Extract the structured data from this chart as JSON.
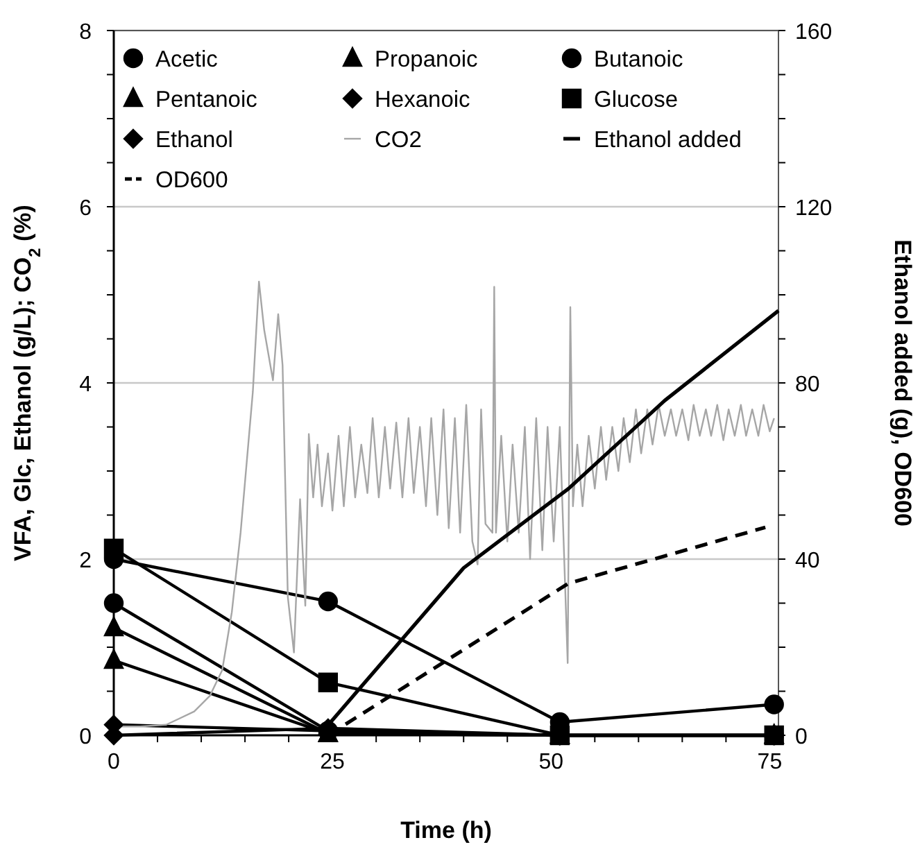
{
  "chart_data": {
    "type": "line",
    "xlabel": "Time (h)",
    "ylabel": "VFA, Glc, Ethanol (g/L);   CO$_{2}$ (%)",
    "y2label": "Ethanol added (g), OD600",
    "xlim": [
      0,
      76
    ],
    "xticks": [
      0,
      {
        "value": 5,
        "label": null
      },
      {
        "value": 10,
        "label": null
      },
      {
        "value": 15,
        "label": null
      },
      {
        "value": 20,
        "label": null
      },
      25,
      {
        "value": 30,
        "label": null
      },
      {
        "value": 35,
        "label": null
      },
      {
        "value": 40,
        "label": null
      },
      {
        "value": 45,
        "label": null
      },
      50,
      {
        "value": 55,
        "label": null
      },
      {
        "value": 60,
        "label": null
      },
      {
        "value": 65,
        "label": null
      },
      {
        "value": 70,
        "label": null
      },
      75
    ],
    "ylim": [
      0,
      8
    ],
    "yticks": [
      0,
      {
        "value": 0.5,
        "label": null
      },
      {
        "value": 1,
        "label": null
      },
      {
        "value": 1.5,
        "label": null
      },
      2,
      {
        "value": 2.5,
        "label": null
      },
      {
        "value": 3,
        "label": null
      },
      {
        "value": 3.5,
        "label": null
      },
      4,
      {
        "value": 4.5,
        "label": null
      },
      {
        "value": 5,
        "label": null
      },
      {
        "value": 5.5,
        "label": null
      },
      6,
      {
        "value": 6.5,
        "label": null
      },
      {
        "value": 7,
        "label": null
      },
      {
        "value": 7.5,
        "label": null
      },
      8
    ],
    "y2lim": [
      0,
      160
    ],
    "y2ticks": [
      0,
      {
        "value": 10,
        "label": null
      },
      {
        "value": 20,
        "label": null
      },
      {
        "value": 30,
        "label": null
      },
      40,
      {
        "value": 50,
        "label": null
      },
      {
        "value": 60,
        "label": null
      },
      {
        "value": 70,
        "label": null
      },
      80,
      {
        "value": 90,
        "label": null
      },
      {
        "value": 100,
        "label": null
      },
      {
        "value": 110,
        "label": null
      },
      120,
      {
        "value": 130,
        "label": null
      },
      {
        "value": 140,
        "label": null
      },
      {
        "value": 150,
        "label": null
      },
      160
    ],
    "grid": "y",
    "legend": "top",
    "series": [
      {
        "name": "Acetic",
        "color": "#000000",
        "marker": "circle",
        "line_style": "solid",
        "x": [
          0,
          24.5,
          51,
          75.5
        ],
        "values": [
          2.0,
          1.52,
          0.15,
          0.35
        ]
      },
      {
        "name": "Propanoic",
        "color": "#000000",
        "marker": "triangle",
        "line_style": "solid",
        "x": [
          0,
          24.5,
          51,
          75.5
        ],
        "values": [
          1.22,
          0.02,
          0,
          0
        ]
      },
      {
        "name": "Butanoic",
        "color": "#000000",
        "marker": "circle",
        "line_style": "solid",
        "x": [
          0,
          24.5,
          51,
          75.5
        ],
        "values": [
          1.5,
          0.05,
          0,
          0
        ]
      },
      {
        "name": "Pentanoic",
        "color": "#000000",
        "marker": "triangle",
        "line_style": "solid",
        "x": [
          0,
          24.5,
          51,
          75.5
        ],
        "values": [
          0.85,
          0.02,
          0,
          0
        ]
      },
      {
        "name": "Hexanoic",
        "color": "#000000",
        "marker": "diamond",
        "line_style": "solid",
        "x": [
          0,
          24.5,
          51,
          75.5
        ],
        "values": [
          0.12,
          0.05,
          0,
          0
        ]
      },
      {
        "name": "Glucose",
        "color": "#000000",
        "marker": "square",
        "line_style": "solid",
        "x": [
          0,
          24.5,
          51,
          75.5
        ],
        "values": [
          2.12,
          0.6,
          0,
          0
        ]
      },
      {
        "name": "Ethanol",
        "color": "#000000",
        "marker": "diamond",
        "line_style": "solid",
        "x": [
          0,
          24.5,
          51,
          75.5
        ],
        "values": [
          0,
          0.08,
          0,
          0
        ]
      },
      {
        "name": "CO2",
        "color": "#a6a6a6",
        "marker": "none",
        "line_style": "solid",
        "x": [
          0,
          3,
          6,
          9.2,
          11,
          12.4,
          13.5,
          14.5,
          15.9,
          16.6,
          17.2,
          18.2,
          18.8,
          19.3,
          19.9,
          20.6,
          21.3,
          21.9,
          22.3,
          22.8,
          23.3,
          23.8,
          24.5,
          25,
          25.7,
          26.3,
          27,
          27.6,
          28.3,
          29,
          29.6,
          30.3,
          31,
          31.6,
          32.3,
          33,
          33.7,
          34.3,
          35,
          35.7,
          36.3,
          37,
          37.7,
          38.3,
          39,
          39.6,
          40.3,
          41,
          41.6,
          42,
          42.5,
          43.3,
          43.5,
          43.7,
          44.3,
          45,
          45.6,
          46.3,
          47,
          47.6,
          48.3,
          49,
          49.6,
          50.3,
          51,
          51.9,
          52.2,
          52.5,
          53,
          53.6,
          54.3,
          55,
          55.7,
          56.3,
          57,
          57.7,
          58.3,
          59,
          59.7,
          60.3,
          61,
          61.6,
          62.3,
          63,
          63.7,
          64.3,
          65,
          65.7,
          66.3,
          67,
          67.7,
          68.3,
          69,
          69.7,
          70.3,
          71,
          71.7,
          72.3,
          73,
          73.7,
          74.3,
          75,
          75.5
        ],
        "values": [
          0.1,
          0.1,
          0.12,
          0.27,
          0.45,
          0.74,
          1.4,
          2.3,
          3.9,
          5.15,
          4.6,
          4.03,
          4.78,
          4.2,
          1.57,
          0.94,
          2.68,
          1.47,
          3.42,
          2.7,
          3.3,
          2.6,
          3.2,
          2.55,
          3.4,
          2.6,
          3.5,
          2.7,
          3.3,
          2.75,
          3.6,
          2.7,
          3.5,
          2.8,
          3.55,
          2.7,
          3.6,
          2.75,
          3.5,
          2.6,
          3.6,
          2.5,
          3.7,
          2.35,
          3.6,
          2.3,
          3.75,
          2.2,
          1.94,
          3.7,
          2.4,
          2.3,
          5.09,
          2.3,
          3.4,
          2.2,
          3.3,
          2.3,
          3.5,
          2.0,
          3.6,
          2.1,
          3.5,
          2.2,
          3.5,
          0.82,
          4.86,
          2.6,
          3.3,
          2.6,
          3.4,
          2.8,
          3.5,
          2.9,
          3.5,
          3.0,
          3.6,
          3.1,
          3.7,
          3.2,
          3.7,
          3.3,
          3.75,
          3.4,
          3.7,
          3.4,
          3.7,
          3.35,
          3.75,
          3.4,
          3.7,
          3.4,
          3.75,
          3.35,
          3.7,
          3.4,
          3.75,
          3.4,
          3.7,
          3.4,
          3.75,
          3.45,
          3.6
        ]
      },
      {
        "name": "Ethanol added",
        "color": "#000000",
        "marker": "none",
        "line_style": "solid",
        "axis": "y2",
        "x": [
          23.5,
          40,
          52,
          63,
          76
        ],
        "values": [
          0,
          38,
          56,
          76,
          96.4
        ]
      },
      {
        "name": "OD600",
        "color": "#000000",
        "marker": "none",
        "line_style": "dashed",
        "axis": "y2",
        "x": [
          24.5,
          52,
          74.5
        ],
        "values": [
          0,
          34.5,
          47.2
        ]
      }
    ]
  }
}
